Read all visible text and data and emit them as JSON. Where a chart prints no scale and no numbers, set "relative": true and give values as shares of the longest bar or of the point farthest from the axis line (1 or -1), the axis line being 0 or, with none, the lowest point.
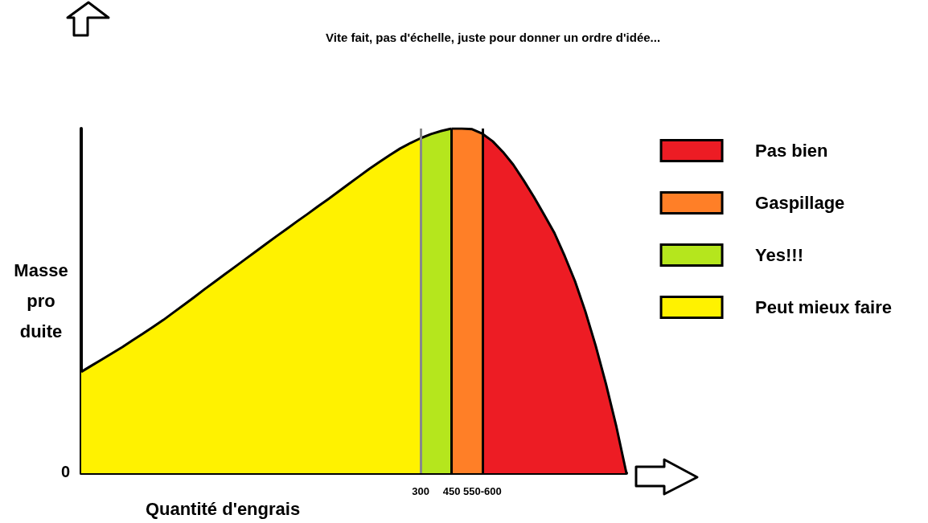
{
  "chart_data": {
    "type": "area",
    "relative": true,
    "title": "Vite fait, pas d'échelle, juste pour donner un ordre d'idée...",
    "xlabel": "Quantité d'engrais",
    "ylabel": "Masse\npro\nduite",
    "categories": [
      null,
      null,
      null,
      null,
      null,
      null,
      null,
      null,
      null,
      null,
      null,
      null,
      null,
      null,
      null,
      null,
      null,
      null,
      null,
      null,
      null,
      null,
      null,
      null,
      null,
      null,
      null,
      null,
      null,
      null,
      null,
      null,
      null,
      "300",
      null,
      null,
      "450",
      null,
      null,
      "550-600",
      null,
      null,
      null,
      null,
      null,
      null,
      null,
      null,
      null,
      null,
      null,
      null,
      null,
      null
    ],
    "series": [
      {
        "name": "Pas bien",
        "color": "#ed1c24",
        "values": [
          null,
          null,
          null,
          null,
          null,
          null,
          null,
          null,
          null,
          null,
          null,
          null,
          null,
          null,
          null,
          null,
          null,
          null,
          null,
          null,
          null,
          null,
          null,
          null,
          null,
          null,
          null,
          null,
          null,
          null,
          null,
          null,
          null,
          null,
          null,
          null,
          null,
          null,
          null,
          0.985,
          0.963,
          0.932,
          0.895,
          0.85,
          0.802,
          0.75,
          0.697,
          0.63,
          0.557,
          0.47,
          0.371,
          0.26,
          0.138,
          0
        ]
      },
      {
        "name": "Gaspillage",
        "color": "#ff7f27",
        "values": [
          null,
          null,
          null,
          null,
          null,
          null,
          null,
          null,
          null,
          null,
          null,
          null,
          null,
          null,
          null,
          null,
          null,
          null,
          null,
          null,
          null,
          null,
          null,
          null,
          null,
          null,
          null,
          null,
          null,
          null,
          null,
          null,
          null,
          null,
          null,
          null,
          1,
          1,
          0.998,
          0.985,
          null,
          null,
          null,
          null,
          null,
          null,
          null,
          null,
          null,
          null,
          null,
          null,
          null,
          null
        ]
      },
      {
        "name": "Yes!!!",
        "color": "#b5e61d",
        "values": [
          null,
          null,
          null,
          null,
          null,
          null,
          null,
          null,
          null,
          null,
          null,
          null,
          null,
          null,
          null,
          null,
          null,
          null,
          null,
          null,
          null,
          null,
          null,
          null,
          null,
          null,
          null,
          null,
          null,
          null,
          null,
          null,
          null,
          0.972,
          0.984,
          0.993,
          1,
          null,
          null,
          null,
          null,
          null,
          null,
          null,
          null,
          null,
          null,
          null,
          null,
          null,
          null,
          null,
          null,
          null
        ]
      },
      {
        "name": "Peut mieux faire",
        "color": "#fff200",
        "values": [
          0.294,
          0.312,
          0.33,
          0.348,
          0.366,
          0.386,
          0.405,
          0.425,
          0.445,
          0.467,
          0.489,
          0.511,
          0.534,
          0.556,
          0.578,
          0.6,
          0.622,
          0.644,
          0.666,
          0.688,
          0.709,
          0.731,
          0.752,
          0.774,
          0.795,
          0.817,
          0.839,
          0.861,
          0.883,
          0.903,
          0.923,
          0.942,
          0.958,
          0.972,
          null,
          null,
          null,
          null,
          null,
          null,
          null,
          null,
          null,
          null,
          null,
          null,
          null,
          null,
          null,
          null,
          null,
          null,
          null,
          null
        ]
      }
    ],
    "ref_lines": [
      {
        "axis": "x",
        "value": "300",
        "color": "#888888"
      },
      {
        "axis": "x",
        "value": "450",
        "color": "#000000"
      },
      {
        "axis": "x",
        "value": "550-600",
        "color": "#000000"
      }
    ],
    "annotations": [
      "0"
    ],
    "legend": "right",
    "grid": false
  }
}
